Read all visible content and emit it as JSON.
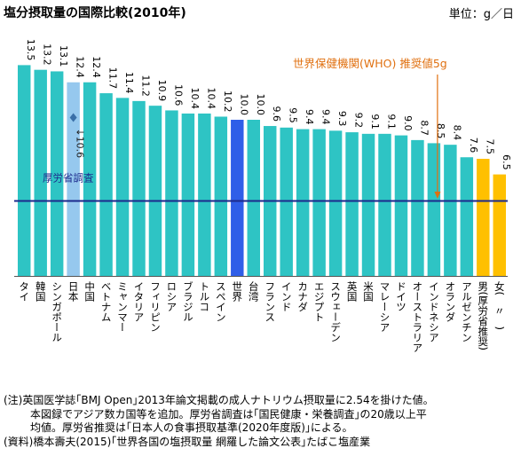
{
  "title": "塩分摂取量の国際比較(2010年)",
  "unit": "単位：g／日",
  "chart_data": {
    "type": "bar",
    "ylim": [
      0,
      16
    ],
    "categories": [
      "タイ",
      "韓国",
      "シンガポール",
      "日本",
      "中国",
      "ベトナム",
      "ミャンマー",
      "イタリア",
      "フィリピン",
      "ロシア",
      "ブラジル",
      "トルコ",
      "スペイン",
      "世界",
      "台湾",
      "フランス",
      "インド",
      "カナダ",
      "エジプト",
      "スウェーデン",
      "英国",
      "米国",
      "マレーシア",
      "ドイツ",
      "オーストラリア",
      "インドネシア",
      "オランダ",
      "アルゼンチン",
      "男(厚労省推奨)",
      "女(　〃　)"
    ],
    "values": [
      13.5,
      13.2,
      13.1,
      12.4,
      12.4,
      11.7,
      11.4,
      11.2,
      10.9,
      10.6,
      10.4,
      10.4,
      10.2,
      10.0,
      10.0,
      9.6,
      9.5,
      9.4,
      9.4,
      9.3,
      9.2,
      9.1,
      9.1,
      9.0,
      8.7,
      8.5,
      8.4,
      7.6,
      7.5,
      6.5
    ],
    "value_labels": [
      "13.5",
      "13.2",
      "13.1",
      "12.4",
      "12.4",
      "11.7",
      "11.4",
      "11.2",
      "10.9",
      "10.6",
      "10.4",
      "10.4",
      "10.2",
      "10.0",
      "10.0",
      "9.6",
      "9.5",
      "9.4",
      "9.4",
      "9.3",
      "9.2",
      "9.1",
      "9.1",
      "9.0",
      "8.7",
      "8.5",
      "8.4",
      "7.6",
      "7.5",
      "6.5"
    ],
    "bar_kinds": [
      "normal",
      "normal",
      "normal",
      "japan",
      "normal",
      "normal",
      "normal",
      "normal",
      "normal",
      "normal",
      "normal",
      "normal",
      "normal",
      "world",
      "normal",
      "normal",
      "normal",
      "normal",
      "normal",
      "normal",
      "normal",
      "normal",
      "normal",
      "normal",
      "normal",
      "normal",
      "normal",
      "normal",
      "recommend",
      "recommend"
    ],
    "japan_survey": {
      "value": 10.6,
      "label": "10.6",
      "line_label": "厚労省調査"
    },
    "who": {
      "value": 5,
      "label": "世界保健機関(WHO) 推奨値5g",
      "bar_index": 25
    },
    "colors": {
      "normal": "#2ec4c4",
      "japan": "#96c8ee",
      "world": "#2f5ee8",
      "recommend": "#ffc000",
      "survey_line": "#1c2a8c",
      "who": "#e07010",
      "marker": "#3a6fa8",
      "axis": "#555555"
    }
  },
  "notes": [
    "(注)英国医学誌｢BMJ Open｣2013年論文掲載の成人ナトリウム摂取量に2.54を掛けた値。",
    "本図録でアジア数カ国等を追加。厚労省調査は｢国民健康・栄養調査｣の20歳以上平",
    "均値。厚労省推奨は｢日本人の食事摂取基準(2020年度版)｣による。",
    "(資料)橋本壽夫(2015)｢世界各国の塩摂取量 網羅した論文公表｣たばこ塩産業"
  ]
}
